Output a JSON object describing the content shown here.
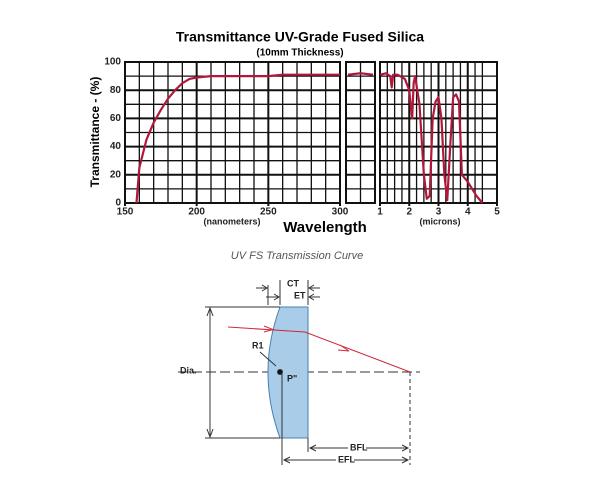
{
  "chart_data": [
    {
      "type": "line",
      "title": "Transmittance UV-Grade Fused Silica",
      "subtitle": "(10mm Thickness)",
      "y_label": "Transmittance - (%)",
      "x_label": "Wavelength",
      "x_unit_label": "(nanometers)",
      "x": [
        158,
        160,
        165,
        170,
        175,
        180,
        185,
        190,
        195,
        200,
        210,
        220,
        230,
        240,
        250,
        260,
        270,
        280,
        290,
        300
      ],
      "values": [
        0,
        25,
        45,
        57,
        66,
        74,
        80,
        85,
        88,
        89,
        90,
        90,
        90,
        90,
        90,
        91,
        91,
        91,
        91,
        91
      ],
      "color": "#b0173a",
      "xlim": [
        150,
        300
      ],
      "xticks": [
        150,
        200,
        250,
        300
      ],
      "minor_xticks": [
        160,
        170,
        180,
        190,
        210,
        220,
        230,
        240,
        260,
        270,
        280,
        290
      ],
      "ylim": [
        0,
        100
      ],
      "yticks": [
        0,
        20,
        40,
        60,
        80,
        100
      ],
      "minor_yticks": [
        10,
        30,
        50,
        70,
        90
      ],
      "grid": true
    },
    {
      "type": "line",
      "categories": [
        null,
        null,
        null
      ],
      "values": [
        91,
        92,
        91
      ],
      "color": "#b0173a",
      "grid": true
    },
    {
      "type": "line",
      "x_unit_label": "(microns)",
      "x": [
        1.0,
        1.2,
        1.35,
        1.4,
        1.45,
        1.6,
        1.85,
        2.0,
        2.1,
        2.15,
        2.2,
        2.35,
        2.5,
        2.6,
        2.7,
        2.8,
        2.9,
        3.0,
        3.1,
        3.2,
        3.3,
        3.4,
        3.5,
        3.6,
        3.7,
        3.8,
        4.0,
        4.3,
        4.5
      ],
      "values": [
        91,
        92,
        90,
        82,
        91,
        91,
        88,
        80,
        60,
        85,
        90,
        70,
        20,
        3,
        5,
        60,
        72,
        75,
        60,
        20,
        2,
        40,
        75,
        77,
        72,
        20,
        15,
        5,
        0
      ],
      "color": "#b0173a",
      "xlim": [
        1,
        5
      ],
      "xticks": [
        1,
        2,
        3,
        4,
        5
      ],
      "minor_xticks": [
        1.25,
        1.5,
        1.75,
        2.25,
        2.5,
        2.75,
        3.25,
        3.5,
        3.75,
        4.25,
        4.5
      ],
      "grid": true
    }
  ],
  "caption": "UV FS Transmission Curve",
  "diagram": {
    "ct": "CT",
    "et": "ET",
    "r1": "R1",
    "dia": "Dia.",
    "p": "P\"",
    "bfl": "BFL",
    "efl": "EFL"
  }
}
